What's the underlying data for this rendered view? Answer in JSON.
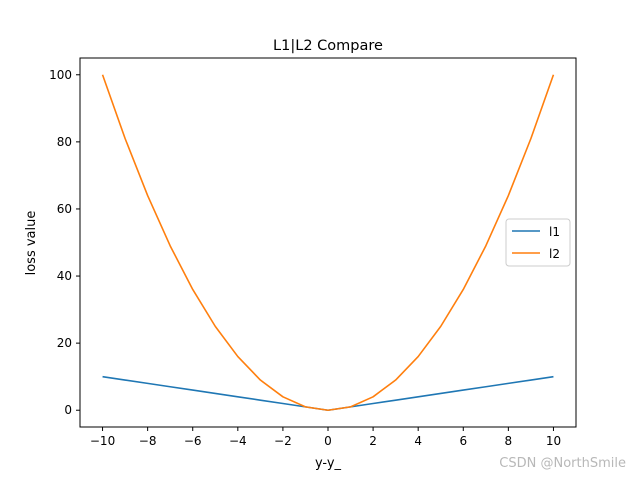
{
  "chart_data": {
    "type": "line",
    "title": "L1|L2 Compare",
    "xlabel": "y-y_",
    "ylabel": "loss value",
    "xlim": [
      -11,
      11
    ],
    "ylim": [
      -5,
      105
    ],
    "xticks": [
      -10,
      -8,
      -6,
      -4,
      -2,
      0,
      2,
      4,
      6,
      8,
      10
    ],
    "xtick_labels": [
      "−10",
      "−8",
      "−6",
      "−4",
      "−2",
      "0",
      "2",
      "4",
      "6",
      "8",
      "10"
    ],
    "yticks": [
      0,
      20,
      40,
      60,
      80,
      100
    ],
    "ytick_labels": [
      "0",
      "20",
      "40",
      "60",
      "80",
      "100"
    ],
    "grid": false,
    "legend_position": "center-right",
    "x": [
      -10,
      -9,
      -8,
      -7,
      -6,
      -5,
      -4,
      -3,
      -2,
      -1,
      0,
      1,
      2,
      3,
      4,
      5,
      6,
      7,
      8,
      9,
      10
    ],
    "series": [
      {
        "name": "l1",
        "color": "#1f77b4",
        "values": [
          10,
          9,
          8,
          7,
          6,
          5,
          4,
          3,
          2,
          1,
          0,
          1,
          2,
          3,
          4,
          5,
          6,
          7,
          8,
          9,
          10
        ]
      },
      {
        "name": "l2",
        "color": "#ff7f0e",
        "values": [
          100,
          81,
          64,
          49,
          36,
          25,
          16,
          9,
          4,
          1,
          0,
          1,
          4,
          9,
          16,
          25,
          36,
          49,
          64,
          81,
          100
        ]
      }
    ]
  },
  "watermark": "CSDN @NorthSmile"
}
